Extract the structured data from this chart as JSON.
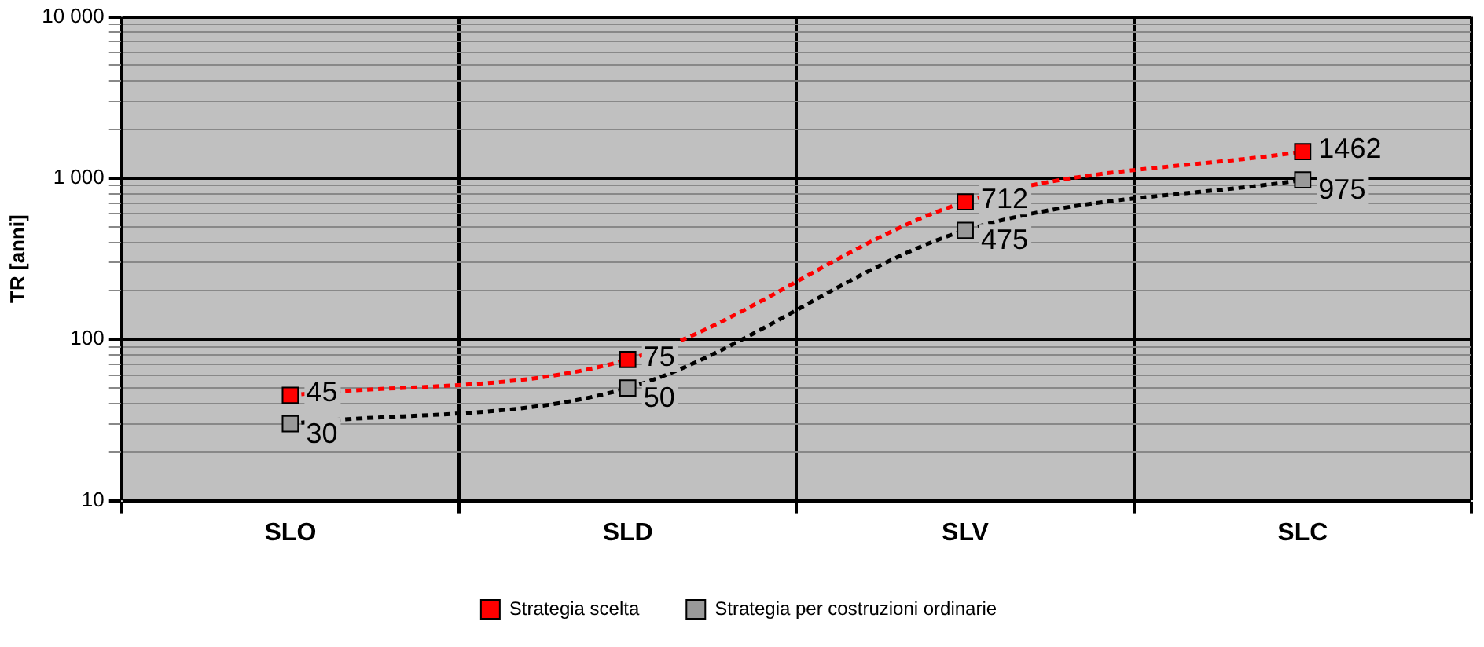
{
  "chart_data": {
    "type": "line",
    "ylabel": "TR [anni]",
    "categories": [
      "SLO",
      "SLD",
      "SLV",
      "SLC"
    ],
    "series": [
      {
        "name": "Strategia scelta",
        "color": "#ff0000",
        "colors": [
          "#ff0000",
          "#ff0000",
          "#ff0000",
          "#ff0000"
        ],
        "values": [
          45,
          75,
          712,
          1462
        ]
      },
      {
        "name": "Strategia per costruzioni ordinarie",
        "color": "#000000",
        "colors": [
          "#999999",
          "#999999",
          "#999999",
          "#999999"
        ],
        "values": [
          30,
          50,
          475,
          975
        ]
      }
    ],
    "log": true,
    "ylim": [
      10,
      10000
    ],
    "yticks": [
      10,
      {
        "value": 20,
        "label": null
      },
      {
        "value": 30,
        "label": null
      },
      {
        "value": 40,
        "label": null
      },
      {
        "value": 50,
        "label": null
      },
      {
        "value": 60,
        "label": null
      },
      {
        "value": 70,
        "label": null
      },
      {
        "value": 80,
        "label": null
      },
      {
        "value": 90,
        "label": null
      },
      100,
      {
        "value": 200,
        "label": null
      },
      {
        "value": 300,
        "label": null
      },
      {
        "value": 400,
        "label": null
      },
      {
        "value": 500,
        "label": null
      },
      {
        "value": 600,
        "label": null
      },
      {
        "value": 700,
        "label": null
      },
      {
        "value": 800,
        "label": null
      },
      {
        "value": 900,
        "label": null
      },
      {
        "value": 1000,
        "label": "1 000"
      },
      {
        "value": 2000,
        "label": null
      },
      {
        "value": 3000,
        "label": null
      },
      {
        "value": 4000,
        "label": null
      },
      {
        "value": 5000,
        "label": null
      },
      {
        "value": 6000,
        "label": null
      },
      {
        "value": 7000,
        "label": null
      },
      {
        "value": 8000,
        "label": null
      },
      {
        "value": 9000,
        "label": null
      },
      {
        "value": 10000,
        "label": "10 000"
      }
    ],
    "grid": true,
    "legend": "bottom",
    "marker": "square",
    "line_style": "dashed",
    "data_labels": true
  }
}
